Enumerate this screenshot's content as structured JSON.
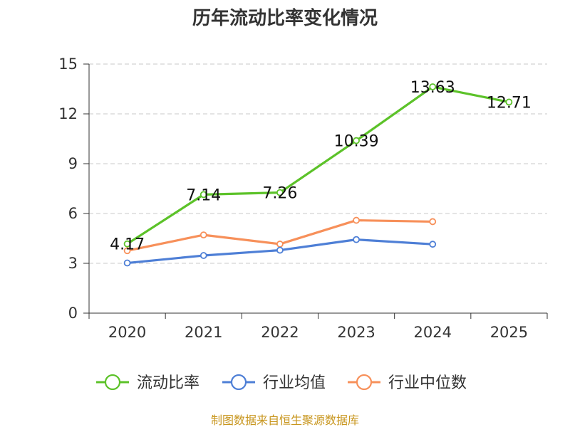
{
  "chart_data": {
    "type": "line",
    "title": "历年流动比率变化情况",
    "categories": [
      "2020",
      "2021",
      "2022",
      "2023",
      "2024",
      "2025"
    ],
    "ylim": [
      0,
      15
    ],
    "yticks": [
      0,
      3,
      6,
      9,
      12,
      15
    ],
    "grid": true,
    "legend_position": "bottom",
    "series": [
      {
        "name": "流动比率",
        "color": "#5cc229",
        "values": [
          4.17,
          7.14,
          7.26,
          10.39,
          13.63,
          12.71
        ],
        "labels": [
          "4.17",
          "7.14",
          "7.26",
          "10.39",
          "13.63",
          "12.71"
        ]
      },
      {
        "name": "行业均值",
        "color": "#4e7fd6",
        "values": [
          3.02,
          3.47,
          3.79,
          4.43,
          4.15,
          null
        ]
      },
      {
        "name": "行业中位数",
        "color": "#f7905a",
        "values": [
          3.76,
          4.71,
          4.16,
          5.59,
          5.51,
          null
        ]
      }
    ]
  },
  "source_text": "制图数据来自恒生聚源数据库"
}
